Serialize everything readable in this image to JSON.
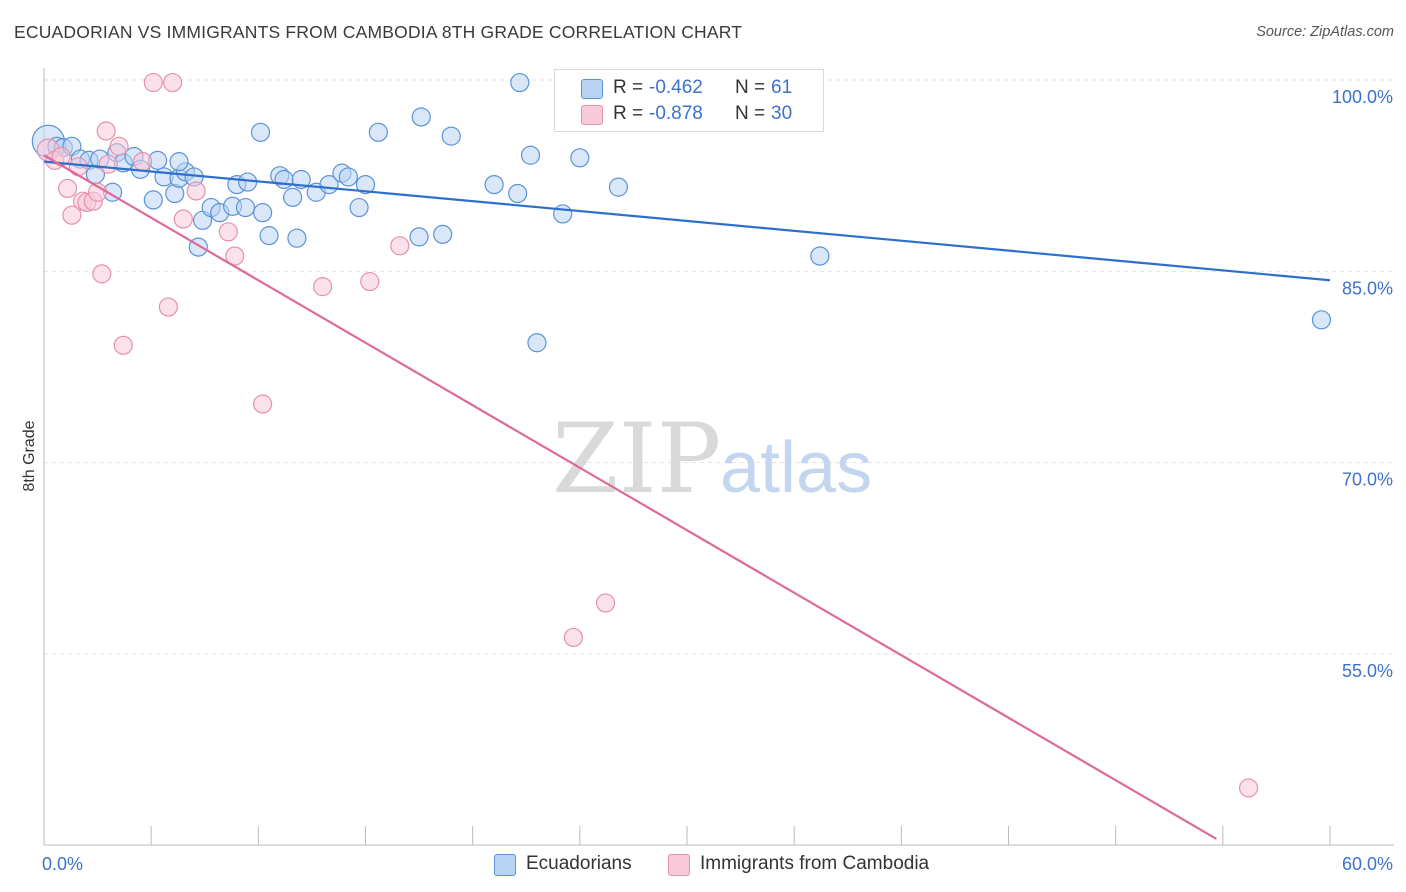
{
  "header": {
    "title": "ECUADORIAN VS IMMIGRANTS FROM CAMBODIA 8TH GRADE CORRELATION CHART",
    "source": "Source: ZipAtlas.com"
  },
  "watermark": {
    "zip": "ZIP",
    "atlas": "atlas"
  },
  "legend": {
    "rows": [
      {
        "r_label": "R =",
        "r_value": "-0.462",
        "n_label": "N =",
        "n_value": "61"
      },
      {
        "r_label": "R =",
        "r_value": "-0.878",
        "n_label": "N =",
        "n_value": "30"
      }
    ]
  },
  "bottom_legend": {
    "items": [
      {
        "label": "Ecuadorians"
      },
      {
        "label": "Immigrants from Cambodia"
      }
    ]
  },
  "colors": {
    "blue_fill": "#b9d3f2",
    "blue_stroke": "#5a93d8",
    "blue_line": "#2e6fcc",
    "pink_fill": "#f8c9d8",
    "pink_stroke": "#e691ae",
    "pink_line": "#e0689a",
    "tick_text": "#3d72c9",
    "grid": "#e2e2e2"
  },
  "chart_data": {
    "type": "scatter",
    "title": "ECUADORIAN VS IMMIGRANTS FROM CAMBODIA 8TH GRADE CORRELATION CHART",
    "xlabel": "",
    "ylabel": "8th Grade",
    "xlim": [
      0,
      60
    ],
    "ylim": [
      40.5,
      101.5
    ],
    "x_tick_labels": [
      {
        "value": 0,
        "label": "0.0%"
      },
      {
        "value": 60,
        "label": "60.0%"
      }
    ],
    "y_tick_labels": [
      {
        "value": 100,
        "label": "100.0%"
      },
      {
        "value": 85,
        "label": "85.0%"
      },
      {
        "value": 70,
        "label": "70.0%"
      },
      {
        "value": 55,
        "label": "55.0%"
      }
    ],
    "grid": true,
    "legend_position": "top-center",
    "series": [
      {
        "name": "Ecuadorians",
        "R": -0.462,
        "N": 61,
        "trend": {
          "x0": 0,
          "y0": 93.6,
          "x1": 60,
          "y1": 84.3
        },
        "points": [
          [
            0.2,
            95.2,
            28
          ],
          [
            0.6,
            94.8,
            14
          ],
          [
            0.9,
            94.7,
            14
          ],
          [
            1.3,
            94.8,
            14
          ],
          [
            1.7,
            93.8,
            14
          ],
          [
            2.1,
            93.7,
            14
          ],
          [
            2.4,
            92.6,
            14
          ],
          [
            2.6,
            93.8,
            14
          ],
          [
            3.2,
            91.2,
            14
          ],
          [
            3.4,
            94.3,
            14
          ],
          [
            3.7,
            93.5,
            14
          ],
          [
            4.2,
            94.0,
            14
          ],
          [
            4.5,
            93.0,
            14
          ],
          [
            5.1,
            90.6,
            14
          ],
          [
            5.3,
            93.7,
            14
          ],
          [
            5.6,
            92.4,
            14
          ],
          [
            6.1,
            91.1,
            14
          ],
          [
            6.3,
            92.3,
            14
          ],
          [
            6.6,
            92.8,
            14
          ],
          [
            6.3,
            93.6,
            14
          ],
          [
            7.0,
            92.4,
            14
          ],
          [
            7.2,
            86.9,
            14
          ],
          [
            7.4,
            89.0,
            14
          ],
          [
            7.8,
            90.0,
            14
          ],
          [
            8.2,
            89.6,
            14
          ],
          [
            8.8,
            90.1,
            14
          ],
          [
            9.0,
            91.8,
            14
          ],
          [
            9.4,
            90.0,
            14
          ],
          [
            9.5,
            92.0,
            14
          ],
          [
            10.1,
            95.9,
            14
          ],
          [
            10.2,
            89.6,
            14
          ],
          [
            10.5,
            87.8,
            14
          ],
          [
            11.0,
            92.5,
            14
          ],
          [
            11.2,
            92.2,
            14
          ],
          [
            11.6,
            90.8,
            14
          ],
          [
            11.8,
            87.6,
            14
          ],
          [
            12.0,
            92.2,
            14
          ],
          [
            12.7,
            91.2,
            14
          ],
          [
            13.3,
            91.8,
            14
          ],
          [
            13.9,
            92.7,
            14
          ],
          [
            14.2,
            92.4,
            14
          ],
          [
            14.7,
            90.0,
            14
          ],
          [
            15.0,
            91.8,
            14
          ],
          [
            15.6,
            95.9,
            14
          ],
          [
            17.5,
            87.7,
            14
          ],
          [
            17.6,
            97.1,
            14
          ],
          [
            18.6,
            87.9,
            14
          ],
          [
            19.0,
            95.6,
            14
          ],
          [
            21.0,
            91.8,
            14
          ],
          [
            22.1,
            91.1,
            14
          ],
          [
            22.2,
            99.8,
            14
          ],
          [
            22.7,
            94.1,
            14
          ],
          [
            23.0,
            79.4,
            14
          ],
          [
            24.2,
            89.5,
            14
          ],
          [
            25.0,
            93.9,
            14
          ],
          [
            26.8,
            91.6,
            14
          ],
          [
            36.2,
            86.2,
            14
          ],
          [
            59.6,
            81.2,
            14
          ]
        ]
      },
      {
        "name": "Immigrants from Cambodia",
        "R": -0.878,
        "N": 30,
        "trend": {
          "x0": 0,
          "y0": 94.1,
          "x1": 54.7,
          "y1": 40.5
        },
        "points": [
          [
            0.2,
            94.5,
            18
          ],
          [
            0.5,
            93.7,
            14
          ],
          [
            0.8,
            94.0,
            14
          ],
          [
            1.1,
            91.5,
            14
          ],
          [
            1.3,
            89.4,
            14
          ],
          [
            1.6,
            93.2,
            14
          ],
          [
            1.8,
            90.5,
            14
          ],
          [
            2.0,
            90.4,
            14
          ],
          [
            2.3,
            90.5,
            14
          ],
          [
            2.5,
            91.2,
            14
          ],
          [
            2.7,
            84.8,
            14
          ],
          [
            2.9,
            96.0,
            14
          ],
          [
            3.0,
            93.4,
            14
          ],
          [
            3.5,
            94.8,
            14
          ],
          [
            3.7,
            79.2,
            14
          ],
          [
            4.6,
            93.6,
            14
          ],
          [
            5.1,
            99.8,
            14
          ],
          [
            5.8,
            82.2,
            14
          ],
          [
            6.0,
            99.8,
            14
          ],
          [
            6.5,
            89.1,
            14
          ],
          [
            7.1,
            91.3,
            14
          ],
          [
            8.6,
            88.1,
            14
          ],
          [
            8.9,
            86.2,
            14
          ],
          [
            10.2,
            74.6,
            14
          ],
          [
            13.0,
            83.8,
            14
          ],
          [
            15.2,
            84.2,
            14
          ],
          [
            16.6,
            87.0,
            14
          ],
          [
            24.7,
            56.3,
            14
          ],
          [
            26.2,
            59.0,
            14
          ],
          [
            56.2,
            44.5,
            14
          ]
        ]
      }
    ]
  }
}
